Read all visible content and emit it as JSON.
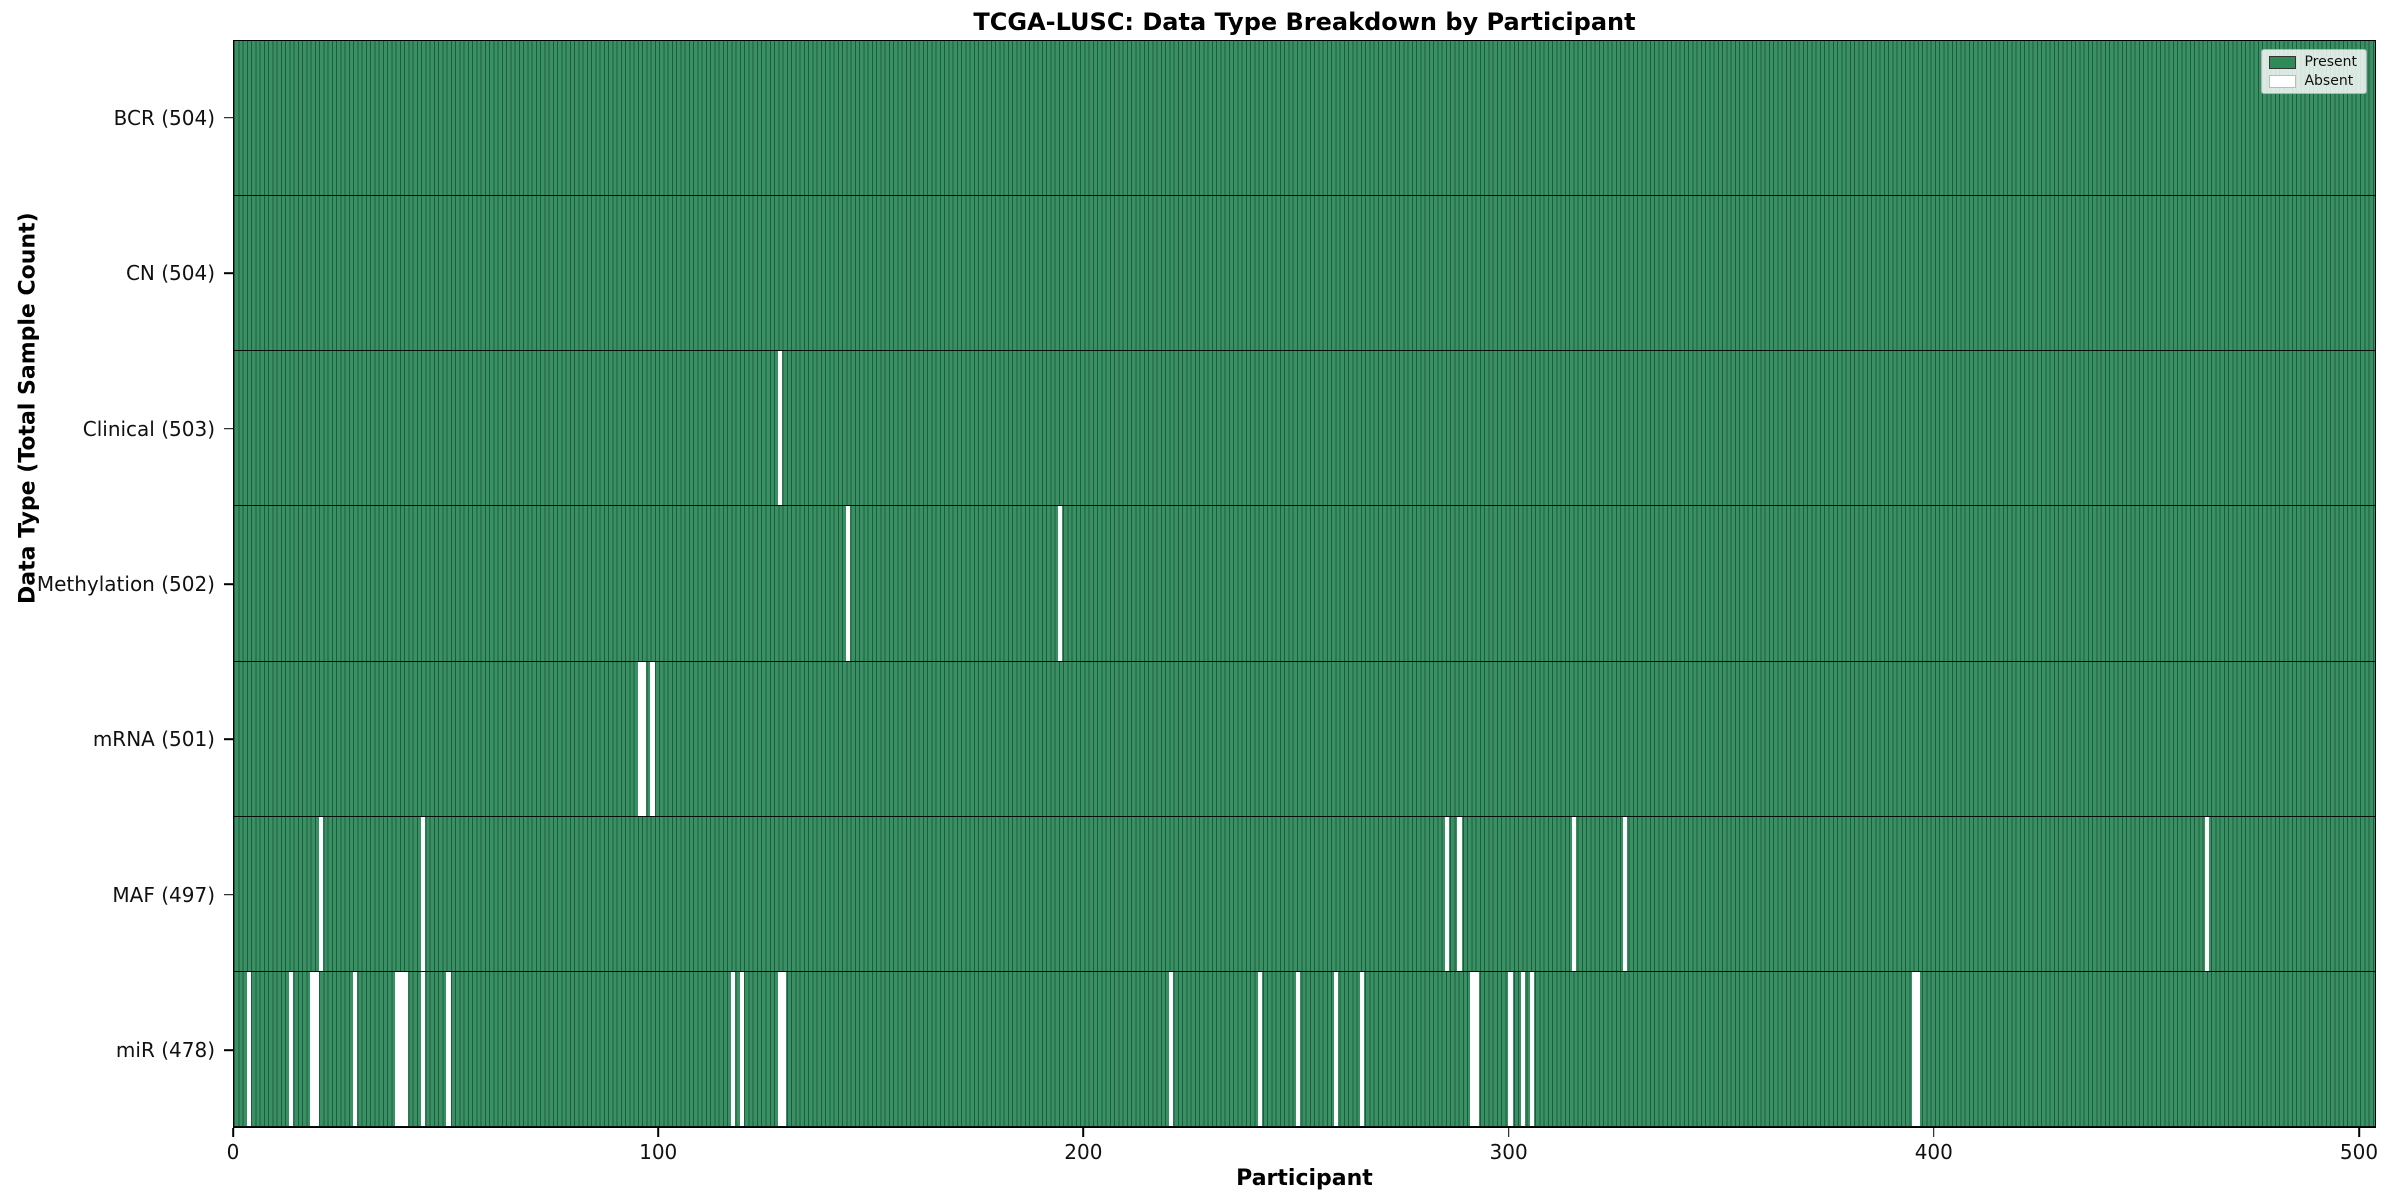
{
  "figure": {
    "title": "TCGA-LUSC: Data Type Breakdown by Participant",
    "xlabel": "Participant",
    "ylabel": "Data Type (Total Sample Count)"
  },
  "legend": {
    "items": [
      {
        "label": "Present",
        "color": "#2e8b57",
        "edge": "#333333"
      },
      {
        "label": "Absent",
        "color": "#ffffff",
        "edge": "#bbbbbb"
      }
    ],
    "position": "upper-right"
  },
  "chart_data": {
    "type": "heatmap",
    "title": "TCGA-LUSC: Data Type Breakdown by Participant",
    "xlabel": "Participant",
    "ylabel": "Data Type (Total Sample Count)",
    "x_ticks": [
      0,
      100,
      200,
      300,
      400,
      500
    ],
    "x_range": [
      0,
      504
    ],
    "n_participants": 504,
    "grid": false,
    "legend_position": "upper right",
    "colors": {
      "present_fill": "#3a9065",
      "present_edge": "#1d5c3a",
      "absent_fill": "#ffffff",
      "row_separator": "#000000"
    },
    "rows": [
      {
        "label": "BCR (504)",
        "data_type": "BCR",
        "total_count": 504,
        "absent_participants": []
      },
      {
        "label": "CN (504)",
        "data_type": "CN",
        "total_count": 504,
        "absent_participants": []
      },
      {
        "label": "Clinical (503)",
        "data_type": "Clinical",
        "total_count": 503,
        "absent_participants": [
          128
        ]
      },
      {
        "label": "Methylation (502)",
        "data_type": "Methylation",
        "total_count": 502,
        "absent_participants": [
          144,
          194
        ]
      },
      {
        "label": "mRNA (501)",
        "data_type": "mRNA",
        "total_count": 501,
        "absent_participants": [
          95,
          96,
          98
        ]
      },
      {
        "label": "MAF (497)",
        "data_type": "MAF",
        "total_count": 497,
        "absent_participants": [
          20,
          44,
          285,
          288,
          315,
          327,
          464
        ]
      },
      {
        "label": "miR (478)",
        "data_type": "miR",
        "total_count": 478,
        "absent_participants": [
          3,
          13,
          18,
          19,
          28,
          38,
          39,
          40,
          44,
          50,
          117,
          119,
          128,
          129,
          220,
          241,
          250,
          259,
          265,
          291,
          292,
          300,
          303,
          305,
          395,
          396
        ]
      }
    ]
  }
}
